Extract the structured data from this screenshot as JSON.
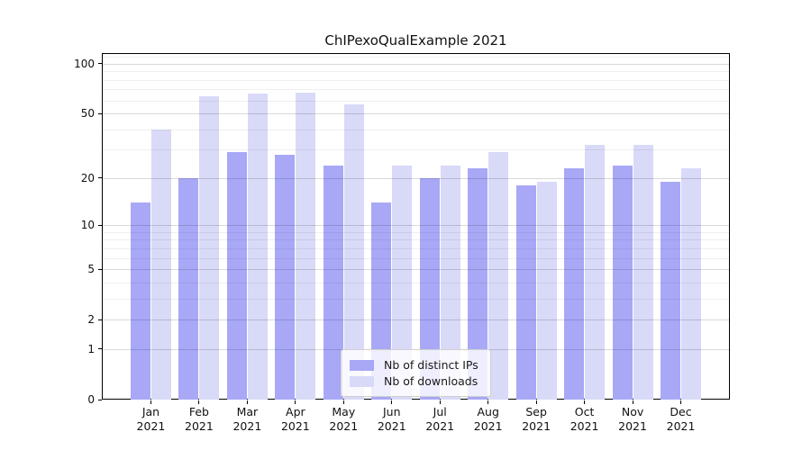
{
  "title": "ChIPexoQualExample 2021",
  "colors": {
    "background": "#ffffff",
    "axis": "#000000",
    "grid_major": "#d9d9d9",
    "grid_minor": "#efefef",
    "legend_border": "#d0d0d0"
  },
  "chart_data": {
    "type": "bar",
    "title": "ChIPexoQualExample 2021",
    "scale": "log1p",
    "categories": [
      "Jan",
      "Feb",
      "Mar",
      "Apr",
      "May",
      "Jun",
      "Jul",
      "Aug",
      "Sep",
      "Oct",
      "Nov",
      "Dec"
    ],
    "category_year": "2021",
    "series": [
      {
        "name": "Nb of distinct IPs",
        "color": "#a8a8f7",
        "values": [
          14,
          20,
          29,
          28,
          24,
          14,
          20,
          23,
          18,
          23,
          24,
          19
        ]
      },
      {
        "name": "Nb of downloads",
        "color": "#d9d9f8",
        "values": [
          40,
          64,
          66,
          67,
          57,
          24,
          24,
          29,
          19,
          32,
          32,
          23
        ]
      }
    ],
    "xlabel": "",
    "ylabel": "",
    "yticks": [
      0,
      1,
      2,
      5,
      10,
      20,
      50,
      100
    ],
    "minor_gridlines": [
      3,
      4,
      6,
      7,
      8,
      9,
      30,
      40,
      60,
      70,
      80,
      90,
      110
    ],
    "ylim": [
      0,
      116
    ],
    "grid": true,
    "legend_position": "lower center"
  }
}
